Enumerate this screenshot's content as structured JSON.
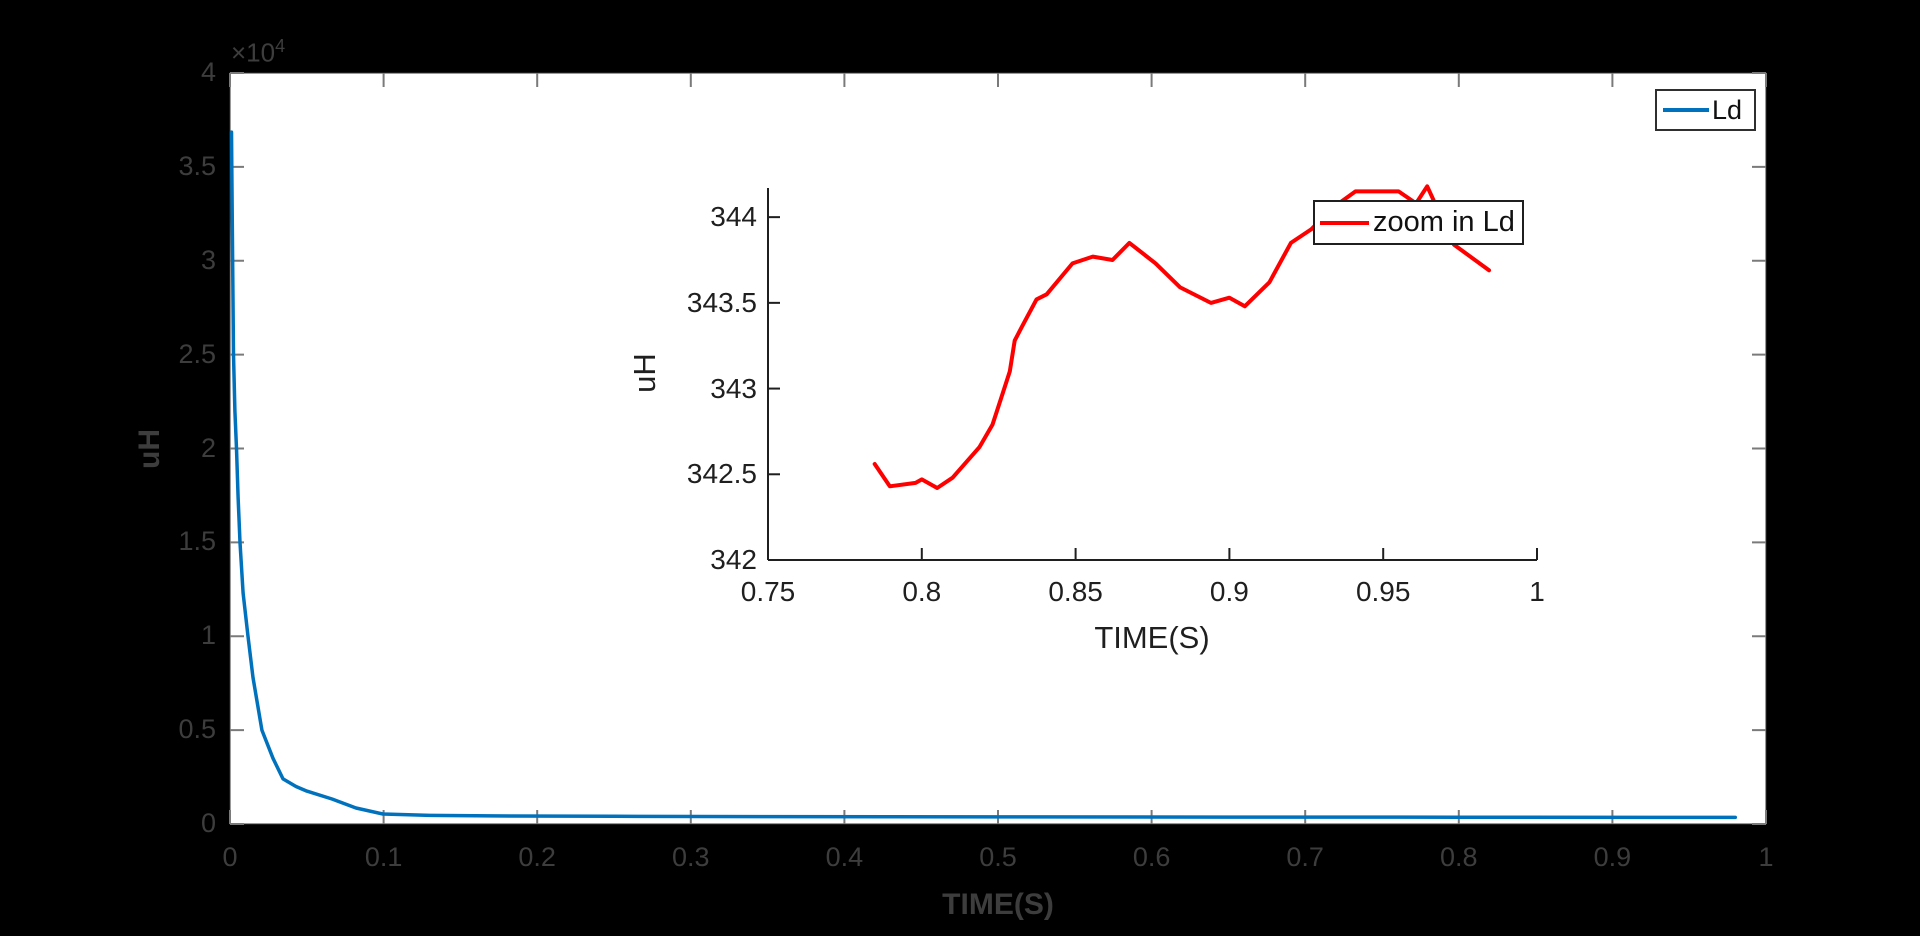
{
  "figure": {
    "background_color": "#000000",
    "plot_background_color": "#ffffff",
    "main_axis_tick_color": "#7a7a7a",
    "main_axis_text_color": "#3d3d3d",
    "inset_axis_color": "#1f1f1f"
  },
  "chart_data": [
    {
      "id": "main",
      "type": "line",
      "title": "",
      "xlabel": "TIME(S)",
      "ylabel": "uH",
      "y_exponent_label": {
        "prefix": "×10",
        "exp": "4"
      },
      "xlim": [
        0,
        1
      ],
      "ylim": [
        0,
        40000
      ],
      "grid": false,
      "x_ticks": [
        {
          "v": 0,
          "label": "0"
        },
        {
          "v": 0.1,
          "label": "0.1"
        },
        {
          "v": 0.2,
          "label": "0.2"
        },
        {
          "v": 0.3,
          "label": "0.3"
        },
        {
          "v": 0.4,
          "label": "0.4"
        },
        {
          "v": 0.5,
          "label": "0.5"
        },
        {
          "v": 0.6,
          "label": "0.6"
        },
        {
          "v": 0.7,
          "label": "0.7"
        },
        {
          "v": 0.8,
          "label": "0.8"
        },
        {
          "v": 0.9,
          "label": "0.9"
        },
        {
          "v": 1,
          "label": "1"
        }
      ],
      "y_ticks": [
        {
          "v": 0,
          "label": "0"
        },
        {
          "v": 5000,
          "label": "0.5"
        },
        {
          "v": 10000,
          "label": "1"
        },
        {
          "v": 15000,
          "label": "1.5"
        },
        {
          "v": 20000,
          "label": "2"
        },
        {
          "v": 25000,
          "label": "2.5"
        },
        {
          "v": 30000,
          "label": "3"
        },
        {
          "v": 35000,
          "label": "3.5"
        },
        {
          "v": 40000,
          "label": "4"
        }
      ],
      "legend": {
        "position": "top-right",
        "entries": [
          {
            "label": "Ld",
            "color": "#0072BD"
          }
        ]
      },
      "series": [
        {
          "name": "Ld",
          "color": "#0072BD",
          "line_width": 3.5,
          "points": [
            [
              0.001,
              36850
            ],
            [
              0.0015,
              32000
            ],
            [
              0.0023,
              25000
            ],
            [
              0.0032,
              22000
            ],
            [
              0.0042,
              20000
            ],
            [
              0.0053,
              17400
            ],
            [
              0.0065,
              15000
            ],
            [
              0.0085,
              12300
            ],
            [
              0.0117,
              10000
            ],
            [
              0.015,
              7800
            ],
            [
              0.0208,
              5000
            ],
            [
              0.028,
              3500
            ],
            [
              0.0345,
              2400
            ],
            [
              0.043,
              2000
            ],
            [
              0.05,
              1750
            ],
            [
              0.0664,
              1330
            ],
            [
              0.082,
              850
            ],
            [
              0.0995,
              530
            ],
            [
              0.13,
              460
            ],
            [
              0.17,
              430
            ],
            [
              0.25,
              410
            ],
            [
              0.35,
              395
            ],
            [
              0.5,
              380
            ],
            [
              0.65,
              370
            ],
            [
              0.8,
              360
            ],
            [
              0.98,
              352
            ]
          ]
        }
      ]
    },
    {
      "id": "inset",
      "type": "line",
      "title": "",
      "xlabel": "TIME(S)",
      "ylabel": "uH",
      "xlim": [
        0.75,
        1
      ],
      "ylim": [
        342,
        344.17
      ],
      "grid": false,
      "box": "off",
      "x_ticks": [
        {
          "v": 0.75,
          "label": "0.75"
        },
        {
          "v": 0.8,
          "label": "0.8"
        },
        {
          "v": 0.85,
          "label": "0.85"
        },
        {
          "v": 0.9,
          "label": "0.9"
        },
        {
          "v": 0.95,
          "label": "0.95"
        },
        {
          "v": 1.0,
          "label": "1"
        }
      ],
      "y_ticks": [
        {
          "v": 342,
          "label": "342"
        },
        {
          "v": 342.5,
          "label": "342.5"
        },
        {
          "v": 343,
          "label": "343"
        },
        {
          "v": 343.5,
          "label": "343.5"
        },
        {
          "v": 344,
          "label": "344"
        }
      ],
      "legend": {
        "position": "top-right",
        "entries": [
          {
            "label": "zoom in Ld",
            "color": "#fe0000"
          }
        ]
      },
      "series": [
        {
          "name": "zoom in Ld",
          "color": "#fe0000",
          "line_width": 4,
          "points": [
            [
              0.7847,
              342.56
            ],
            [
              0.7896,
              342.43
            ],
            [
              0.798,
              342.45
            ],
            [
              0.8,
              342.47
            ],
            [
              0.805,
              342.42
            ],
            [
              0.81,
              342.48
            ],
            [
              0.8188,
              342.66
            ],
            [
              0.823,
              342.79
            ],
            [
              0.8257,
              342.94
            ],
            [
              0.8286,
              343.1
            ],
            [
              0.8302,
              343.28
            ],
            [
              0.8325,
              343.36
            ],
            [
              0.8373,
              343.52
            ],
            [
              0.8406,
              343.55
            ],
            [
              0.849,
              343.73
            ],
            [
              0.8556,
              343.77
            ],
            [
              0.862,
              343.75
            ],
            [
              0.8675,
              343.85
            ],
            [
              0.876,
              343.73
            ],
            [
              0.884,
              343.59
            ],
            [
              0.894,
              343.5
            ],
            [
              0.9,
              343.53
            ],
            [
              0.905,
              343.48
            ],
            [
              0.913,
              343.62
            ],
            [
              0.92,
              343.85
            ],
            [
              0.9267,
              343.93
            ],
            [
              0.934,
              344.06
            ],
            [
              0.941,
              344.15
            ],
            [
              0.955,
              344.15
            ],
            [
              0.9607,
              344.08
            ],
            [
              0.9643,
              344.18
            ],
            [
              0.973,
              343.84
            ],
            [
              0.9844,
              343.69
            ]
          ]
        }
      ]
    }
  ]
}
